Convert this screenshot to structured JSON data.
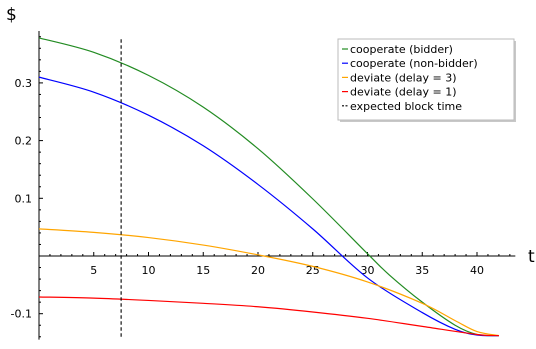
{
  "chart_data": {
    "type": "line",
    "xlabel": "t",
    "ylabel": "$",
    "xlim": [
      0,
      43.5
    ],
    "ylim": [
      -0.145,
      0.39
    ],
    "xticks": [
      5,
      10,
      15,
      20,
      25,
      30,
      35,
      40
    ],
    "yticks": [
      -0.1,
      0.1,
      0.2,
      0.3
    ],
    "xtick_labels": [
      "5",
      "10",
      "15",
      "20",
      "25",
      "30",
      "35",
      "40"
    ],
    "ytick_labels": [
      "-0.1",
      "0.1",
      "0.2",
      "0.3"
    ],
    "grid": false,
    "legend_position": "top-right",
    "series": [
      {
        "name": "cooperate (bidder)",
        "color": "#228b22",
        "style": "solid",
        "x": [
          0,
          5,
          10,
          15,
          20,
          25,
          30,
          32,
          35,
          38,
          40,
          42
        ],
        "y": [
          0.378,
          0.353,
          0.313,
          0.258,
          0.186,
          0.099,
          0.004,
          -0.033,
          -0.08,
          -0.12,
          -0.136,
          -0.138
        ]
      },
      {
        "name": "cooperate (non-bidder)",
        "color": "#0000ff",
        "style": "solid",
        "x": [
          0,
          5,
          10,
          15,
          20,
          25,
          30,
          35,
          38,
          40,
          42
        ],
        "y": [
          0.31,
          0.284,
          0.244,
          0.191,
          0.124,
          0.047,
          -0.038,
          -0.098,
          -0.127,
          -0.137,
          -0.138
        ]
      },
      {
        "name": "deviate (delay = 3)",
        "color": "#ffa500",
        "style": "solid",
        "x": [
          0,
          5,
          10,
          15,
          20,
          25,
          30,
          35,
          38,
          40,
          42
        ],
        "y": [
          0.047,
          0.041,
          0.032,
          0.019,
          0.002,
          -0.018,
          -0.045,
          -0.082,
          -0.112,
          -0.131,
          -0.138
        ]
      },
      {
        "name": "deviate (delay = 1)",
        "color": "#ff0000",
        "style": "solid",
        "x": [
          0,
          5,
          10,
          15,
          20,
          25,
          30,
          35,
          40,
          42
        ],
        "y": [
          -0.071,
          -0.073,
          -0.077,
          -0.082,
          -0.088,
          -0.097,
          -0.108,
          -0.122,
          -0.136,
          -0.138
        ]
      },
      {
        "name": "expected block time",
        "color": "#000000",
        "style": "dashed",
        "x": [
          7.5,
          7.5
        ],
        "y": [
          -0.14,
          0.38
        ]
      }
    ]
  }
}
